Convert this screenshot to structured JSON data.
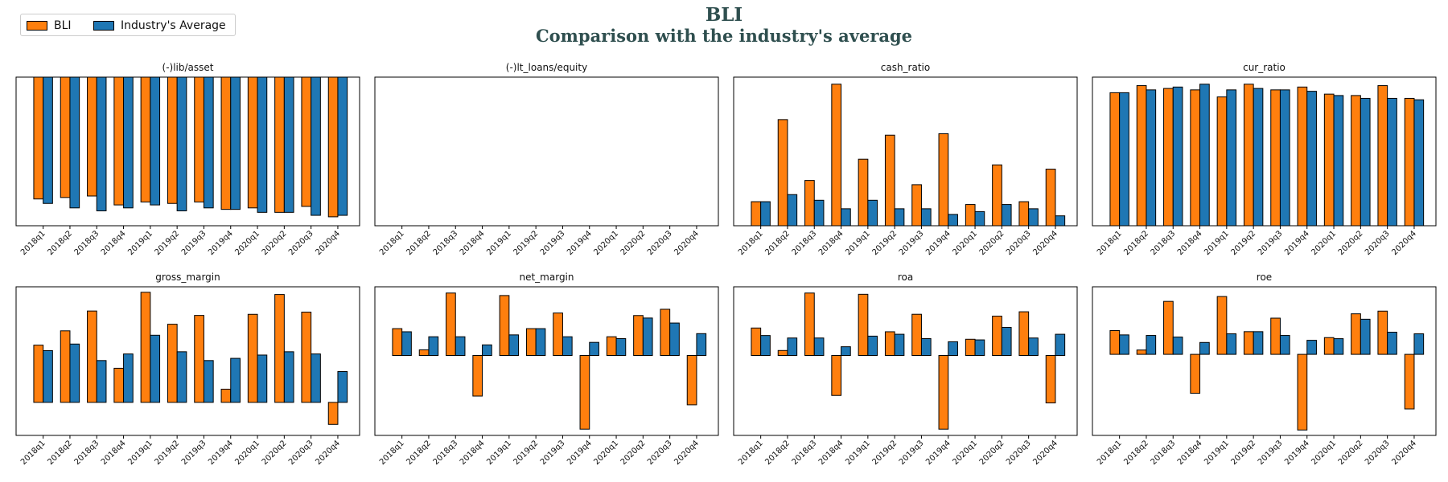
{
  "title": "BLI",
  "subtitle": "Comparison with the industry's average",
  "colors": {
    "company": "#ff7f0e",
    "industry": "#1f77b4"
  },
  "legend": {
    "company_label": "BLI",
    "industry_label": "Industry's Average"
  },
  "chart_data": [
    {
      "type": "bar",
      "title": "(-)lib/asset",
      "categories": [
        "2018q1",
        "2018q2",
        "2018q3",
        "2018q4",
        "2019q1",
        "2019q2",
        "2019q3",
        "2019q4",
        "2020q1",
        "2020q2",
        "2020q3",
        "2020q4"
      ],
      "series": [
        {
          "name": "BLI",
          "values": [
            -0.82,
            -0.81,
            -0.8,
            -0.86,
            -0.84,
            -0.85,
            -0.84,
            -0.89,
            -0.88,
            -0.91,
            -0.87,
            -0.94
          ]
        },
        {
          "name": "Industry's Average",
          "values": [
            -0.85,
            -0.88,
            -0.9,
            -0.88,
            -0.86,
            -0.9,
            -0.88,
            -0.89,
            -0.91,
            -0.91,
            -0.93,
            -0.93
          ]
        }
      ],
      "ylim": [
        -1.0,
        0.0
      ],
      "grid": false
    },
    {
      "type": "bar",
      "title": "(-)lt_loans/equity",
      "categories": [
        "2018q1",
        "2018q2",
        "2018q3",
        "2018q4",
        "2019q1",
        "2019q2",
        "2019q3",
        "2019q4",
        "2020q1",
        "2020q2",
        "2020q3",
        "2020q4"
      ],
      "series": [
        {
          "name": "BLI",
          "values": [
            0,
            0,
            0,
            0,
            0,
            0,
            0,
            0,
            0,
            0,
            0,
            0
          ]
        },
        {
          "name": "Industry's Average",
          "values": [
            0,
            0,
            0,
            0,
            0,
            0,
            0,
            0,
            0,
            0,
            0,
            0
          ]
        }
      ],
      "ylim": [
        -0.05,
        0.05
      ],
      "grid": false
    },
    {
      "type": "bar",
      "title": "cash_ratio",
      "categories": [
        "2018q1",
        "2018q2",
        "2018q3",
        "2018q4",
        "2019q1",
        "2019q2",
        "2019q3",
        "2019q4",
        "2020q1",
        "2020q2",
        "2020q3",
        "2020q4"
      ],
      "series": [
        {
          "name": "BLI",
          "values": [
            0.17,
            0.75,
            0.32,
            1.0,
            0.47,
            0.64,
            0.29,
            0.65,
            0.15,
            0.43,
            0.17,
            0.4
          ]
        },
        {
          "name": "Industry's Average",
          "values": [
            0.17,
            0.22,
            0.18,
            0.12,
            0.18,
            0.12,
            0.12,
            0.08,
            0.1,
            0.15,
            0.12,
            0.07
          ]
        }
      ],
      "ylim": [
        0.0,
        1.05
      ],
      "grid": false
    },
    {
      "type": "bar",
      "title": "cur_ratio",
      "categories": [
        "2018q1",
        "2018q2",
        "2018q3",
        "2018q4",
        "2019q1",
        "2019q2",
        "2019q3",
        "2019q4",
        "2020q1",
        "2020q2",
        "2020q3",
        "2020q4"
      ],
      "series": [
        {
          "name": "BLI",
          "values": [
            0.94,
            0.99,
            0.97,
            0.96,
            0.91,
            1.0,
            0.96,
            0.98,
            0.93,
            0.92,
            0.99,
            0.9
          ]
        },
        {
          "name": "Industry's Average",
          "values": [
            0.94,
            0.96,
            0.98,
            1.0,
            0.96,
            0.97,
            0.96,
            0.95,
            0.92,
            0.9,
            0.9,
            0.89
          ]
        }
      ],
      "ylim": [
        0.0,
        1.05
      ],
      "grid": false
    },
    {
      "type": "bar",
      "title": "gross_margin",
      "categories": [
        "2018q1",
        "2018q2",
        "2018q3",
        "2018q4",
        "2019q1",
        "2019q2",
        "2019q3",
        "2019q4",
        "2020q1",
        "2020q2",
        "2020q3",
        "2020q4"
      ],
      "series": [
        {
          "name": "BLI",
          "values": [
            0.52,
            0.65,
            0.83,
            0.31,
            1.0,
            0.71,
            0.79,
            0.12,
            0.8,
            0.98,
            0.82,
            -0.2
          ]
        },
        {
          "name": "Industry's Average",
          "values": [
            0.47,
            0.53,
            0.38,
            0.44,
            0.61,
            0.46,
            0.38,
            0.4,
            0.43,
            0.46,
            0.44,
            0.28
          ]
        }
      ],
      "ylim": [
        -0.3,
        1.05
      ],
      "grid": false
    },
    {
      "type": "bar",
      "title": "net_margin",
      "categories": [
        "2018q1",
        "2018q2",
        "2018q3",
        "2018q4",
        "2019q1",
        "2019q2",
        "2019q3",
        "2019q4",
        "2020q1",
        "2020q2",
        "2020q3",
        "2020q4"
      ],
      "series": [
        {
          "name": "BLI",
          "values": [
            0.43,
            0.09,
            1.0,
            -0.65,
            0.96,
            0.43,
            0.68,
            -1.18,
            0.3,
            0.64,
            0.74,
            -0.79
          ]
        },
        {
          "name": "Industry's Average",
          "values": [
            0.38,
            0.3,
            0.3,
            0.17,
            0.33,
            0.43,
            0.3,
            0.21,
            0.27,
            0.6,
            0.52,
            0.35
          ]
        }
      ],
      "ylim": [
        -1.28,
        1.1
      ],
      "grid": false
    },
    {
      "type": "bar",
      "title": "roa",
      "categories": [
        "2018q1",
        "2018q2",
        "2018q3",
        "2018q4",
        "2019q1",
        "2019q2",
        "2019q3",
        "2019q4",
        "2020q1",
        "2020q2",
        "2020q3",
        "2020q4"
      ],
      "series": [
        {
          "name": "BLI",
          "values": [
            0.44,
            0.08,
            1.0,
            -0.64,
            0.98,
            0.38,
            0.66,
            -1.18,
            0.26,
            0.63,
            0.7,
            -0.76
          ]
        },
        {
          "name": "Industry's Average",
          "values": [
            0.32,
            0.28,
            0.28,
            0.14,
            0.31,
            0.34,
            0.27,
            0.22,
            0.25,
            0.45,
            0.28,
            0.34
          ]
        }
      ],
      "ylim": [
        -1.28,
        1.1
      ],
      "grid": false
    },
    {
      "type": "bar",
      "title": "roe",
      "categories": [
        "2018q1",
        "2018q2",
        "2018q3",
        "2018q4",
        "2019q1",
        "2019q2",
        "2019q3",
        "2019q4",
        "2020q1",
        "2020q2",
        "2020q3",
        "2020q4"
      ],
      "series": [
        {
          "name": "BLI",
          "values": [
            0.44,
            0.08,
            0.98,
            -0.72,
            1.07,
            0.42,
            0.67,
            -1.4,
            0.31,
            0.75,
            0.8,
            -1.01
          ]
        },
        {
          "name": "Industry's Average",
          "values": [
            0.36,
            0.35,
            0.32,
            0.22,
            0.38,
            0.42,
            0.35,
            0.26,
            0.29,
            0.65,
            0.41,
            0.38
          ]
        }
      ],
      "ylim": [
        -1.5,
        1.25
      ],
      "grid": false
    }
  ]
}
